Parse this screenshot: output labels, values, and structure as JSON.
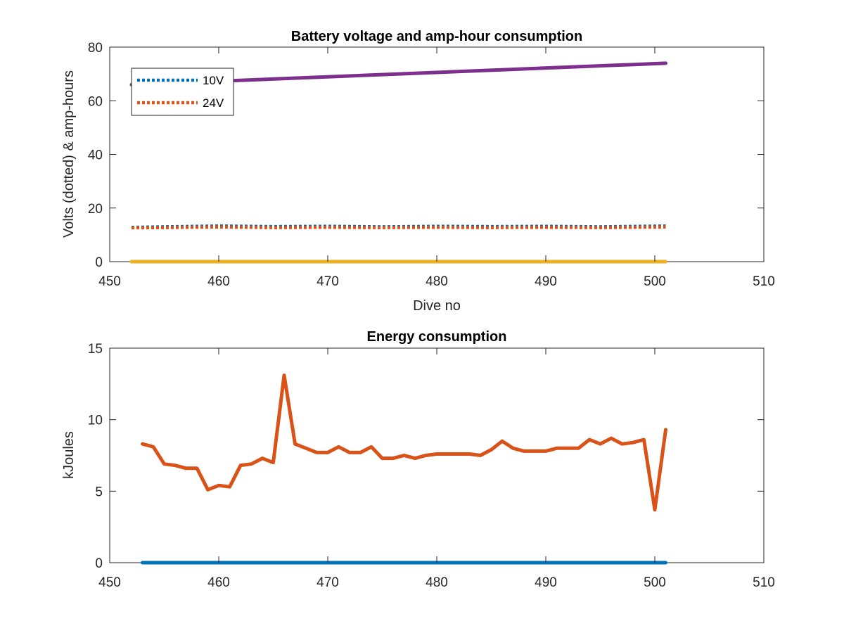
{
  "chart_data": [
    {
      "type": "line",
      "title": "Battery voltage and amp-hour consumption",
      "xlabel": "Dive no",
      "ylabel": "Volts (dotted) & amp-hours",
      "xlim": [
        450,
        510
      ],
      "ylim": [
        0,
        80
      ],
      "xticks": [
        "450",
        "460",
        "470",
        "480",
        "490",
        "500",
        "510"
      ],
      "yticks": [
        "0",
        "20",
        "40",
        "60",
        "80"
      ],
      "grid": false,
      "legend_position": "top-left",
      "series": [
        {
          "name": "10V",
          "style": "dotted",
          "color": "#0072BD",
          "x": [
            452,
            455,
            460,
            465,
            470,
            475,
            480,
            485,
            490,
            495,
            501
          ],
          "y": [
            12.8,
            13.0,
            13.3,
            13.1,
            13.2,
            13.0,
            13.2,
            13.1,
            13.2,
            13.0,
            13.3
          ]
        },
        {
          "name": "24V",
          "style": "dotted",
          "color": "#D95319",
          "x": [
            452,
            455,
            460,
            465,
            470,
            475,
            480,
            485,
            490,
            495,
            501
          ],
          "y": [
            12.6,
            12.7,
            12.9,
            12.7,
            12.8,
            12.7,
            12.8,
            12.7,
            12.8,
            12.7,
            12.9
          ]
        },
        {
          "style": "solid",
          "color": "#EDB120",
          "x": [
            452,
            501
          ],
          "y": [
            0,
            0
          ]
        },
        {
          "style": "solid",
          "color": "#7E2F8E",
          "x": [
            452,
            501
          ],
          "y": [
            66.0,
            74.0
          ]
        }
      ]
    },
    {
      "type": "line",
      "title": "Energy consumption",
      "xlabel": "",
      "ylabel": "kJoules",
      "xlim": [
        450,
        510
      ],
      "ylim": [
        0,
        15
      ],
      "xticks": [
        "450",
        "460",
        "470",
        "480",
        "490",
        "500",
        "510"
      ],
      "yticks": [
        "0",
        "5",
        "10",
        "15"
      ],
      "grid": false,
      "series": [
        {
          "style": "solid",
          "color": "#0072BD",
          "x": [
            453,
            501
          ],
          "y": [
            0,
            0
          ]
        },
        {
          "style": "solid",
          "color": "#D95319",
          "x": [
            453,
            454,
            455,
            456,
            457,
            458,
            459,
            460,
            461,
            462,
            463,
            464,
            465,
            466,
            467,
            468,
            469,
            470,
            471,
            472,
            473,
            474,
            475,
            476,
            477,
            478,
            479,
            480,
            481,
            482,
            483,
            484,
            485,
            486,
            487,
            488,
            489,
            490,
            491,
            492,
            493,
            494,
            495,
            496,
            497,
            498,
            499,
            500,
            501
          ],
          "y": [
            8.3,
            8.1,
            6.9,
            6.8,
            6.6,
            6.6,
            5.1,
            5.4,
            5.3,
            6.8,
            6.9,
            7.3,
            7.0,
            13.1,
            8.3,
            8.0,
            7.7,
            7.7,
            8.1,
            7.7,
            7.7,
            8.1,
            7.3,
            7.3,
            7.5,
            7.3,
            7.5,
            7.6,
            7.6,
            7.6,
            7.6,
            7.5,
            7.9,
            8.5,
            8.0,
            7.8,
            7.8,
            7.8,
            8.0,
            8.0,
            8.0,
            8.6,
            8.3,
            8.7,
            8.3,
            8.4,
            8.6,
            3.7,
            9.3
          ]
        }
      ]
    }
  ]
}
